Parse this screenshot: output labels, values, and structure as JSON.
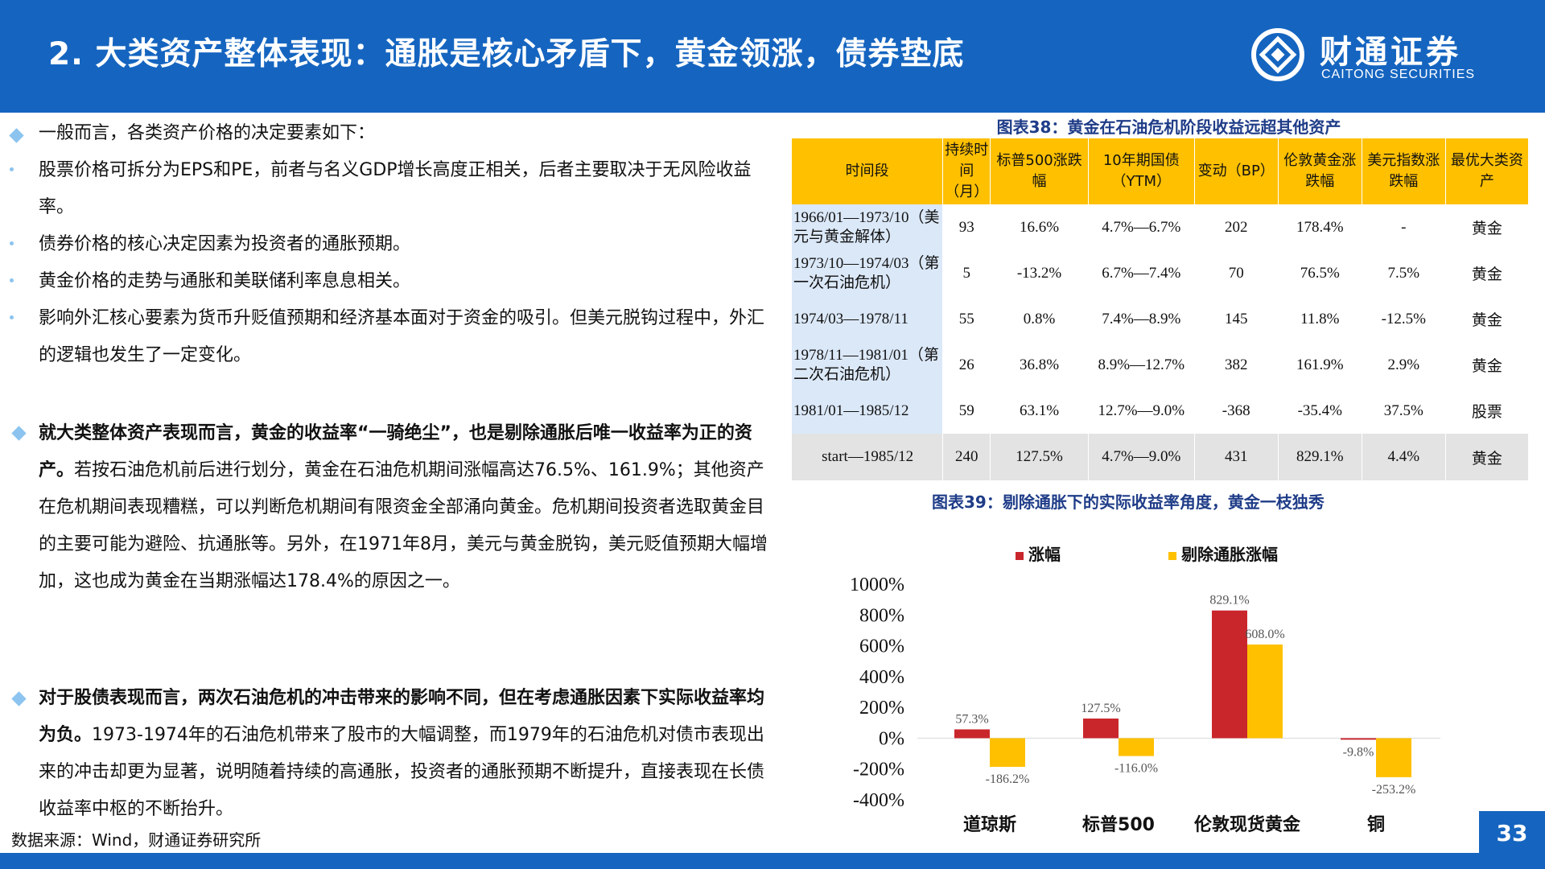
{
  "header": {
    "title": "2. 大类资产整体表现：通胀是核心矛盾下，黄金领涨，债券垫底",
    "logo_cn": "财通证券",
    "logo_en": "CAITONG SECURITIES",
    "bg_color": "#1565c0"
  },
  "left": {
    "p1": "一般而言，各类资产价格的决定要素如下：",
    "p2": "股票价格可拆分为EPS和PE，前者与名义GDP增长高度正相关，后者主要取决于无风险收益率。",
    "p3": "债券价格的核心决定因素为投资者的通胀预期。",
    "p4": "黄金价格的走势与通胀和美联储利率息息相关。",
    "p5": "影响外汇核心要素为货币升贬值预期和经济基本面对于资金的吸引。但美元脱钩过程中，外汇的逻辑也发生了一定变化。",
    "p6_bold": "就大类整体资产表现而言，黄金的收益率“一骑绝尘”，也是剔除通胀后唯一收益率为正的资产。",
    "p6_rest": "若按石油危机前后进行划分，黄金在石油危机期间涨幅高达76.5%、161.9%；其他资产在危机期间表现糟糕，可以判断危机期间有限资金全部涌向黄金。危机期间投资者选取黄金目的主要可能为避险、抗通胀等。另外，在1971年8月，美元与黄金脱钩，美元贬值预期大幅增加，这也成为黄金在当期涨幅达178.4%的原因之一。",
    "p7_bold": "对于股债表现而言，两次石油危机的冲击带来的影响不同，但在考虑通胀因素下实际收益率均为负。",
    "p7_rest": "1973-1974年的石油危机带来了股市的大幅调整，而1979年的石油危机对债市表现出来的冲击却更为显著，说明随着持续的高通胀，投资者的通胀预期不断提升，直接表现在长债收益率中枢的不断抬升。"
  },
  "source": "数据来源：Wind，财通证券研究所",
  "table": {
    "caption": "图表38：黄金在石油危机阶段收益远超其他资产",
    "headers": [
      "时间段",
      "持续时间（月）",
      "标普500涨跌幅",
      "10年期国债（YTM）",
      "变动（BP）",
      "伦敦黄金涨跌幅",
      "美元指数涨跌幅",
      "最优大类资产"
    ],
    "rows": [
      [
        "1966/01—1973/10（美元与黄金解体）",
        "93",
        "16.6%",
        "4.7%—6.7%",
        "202",
        "178.4%",
        "-",
        "黄金"
      ],
      [
        "1973/10—1974/03（第一次石油危机）",
        "5",
        "-13.2%",
        "6.7%—7.4%",
        "70",
        "76.5%",
        "7.5%",
        "黄金"
      ],
      [
        "1974/03—1978/11",
        "55",
        "0.8%",
        "7.4%—8.9%",
        "145",
        "11.8%",
        "-12.5%",
        "黄金"
      ],
      [
        "1978/11—1981/01（第二次石油危机）",
        "26",
        "36.8%",
        "8.9%—12.7%",
        "382",
        "161.9%",
        "2.9%",
        "黄金"
      ],
      [
        "1981/01—1985/12",
        "59",
        "63.1%",
        "12.7%—9.0%",
        "-368",
        "-35.4%",
        "37.5%",
        "股票"
      ],
      [
        "start—1985/12",
        "240",
        "127.5%",
        "4.7%—9.0%",
        "431",
        "829.1%",
        "4.4%",
        "黄金"
      ]
    ]
  },
  "chart_data": {
    "type": "bar",
    "title": "图表39：剔除通胀下的实际收益率角度，黄金一枝独秀",
    "categories": [
      "道琼斯",
      "标普500",
      "伦敦现货黄金",
      "铜"
    ],
    "series": [
      {
        "name": "涨幅",
        "color": "#c9262c",
        "values": [
          57.3,
          127.5,
          829.1,
          -9.8
        ],
        "labels": [
          "57.3%",
          "127.5%",
          "829.1%",
          "-9.8%"
        ]
      },
      {
        "name": "剔除通胀涨幅",
        "color": "#ffc000",
        "values": [
          -186.2,
          -116.0,
          608.0,
          -253.2
        ],
        "labels": [
          "-186.2%",
          "-116.0%",
          "608.0%",
          "-253.2%"
        ]
      }
    ],
    "ylim": [
      -400,
      1000
    ],
    "yticks": [
      "1000%",
      "800%",
      "600%",
      "400%",
      "200%",
      "0%",
      "-200%",
      "-400%"
    ],
    "legend": "top-left"
  },
  "page_number": "33"
}
